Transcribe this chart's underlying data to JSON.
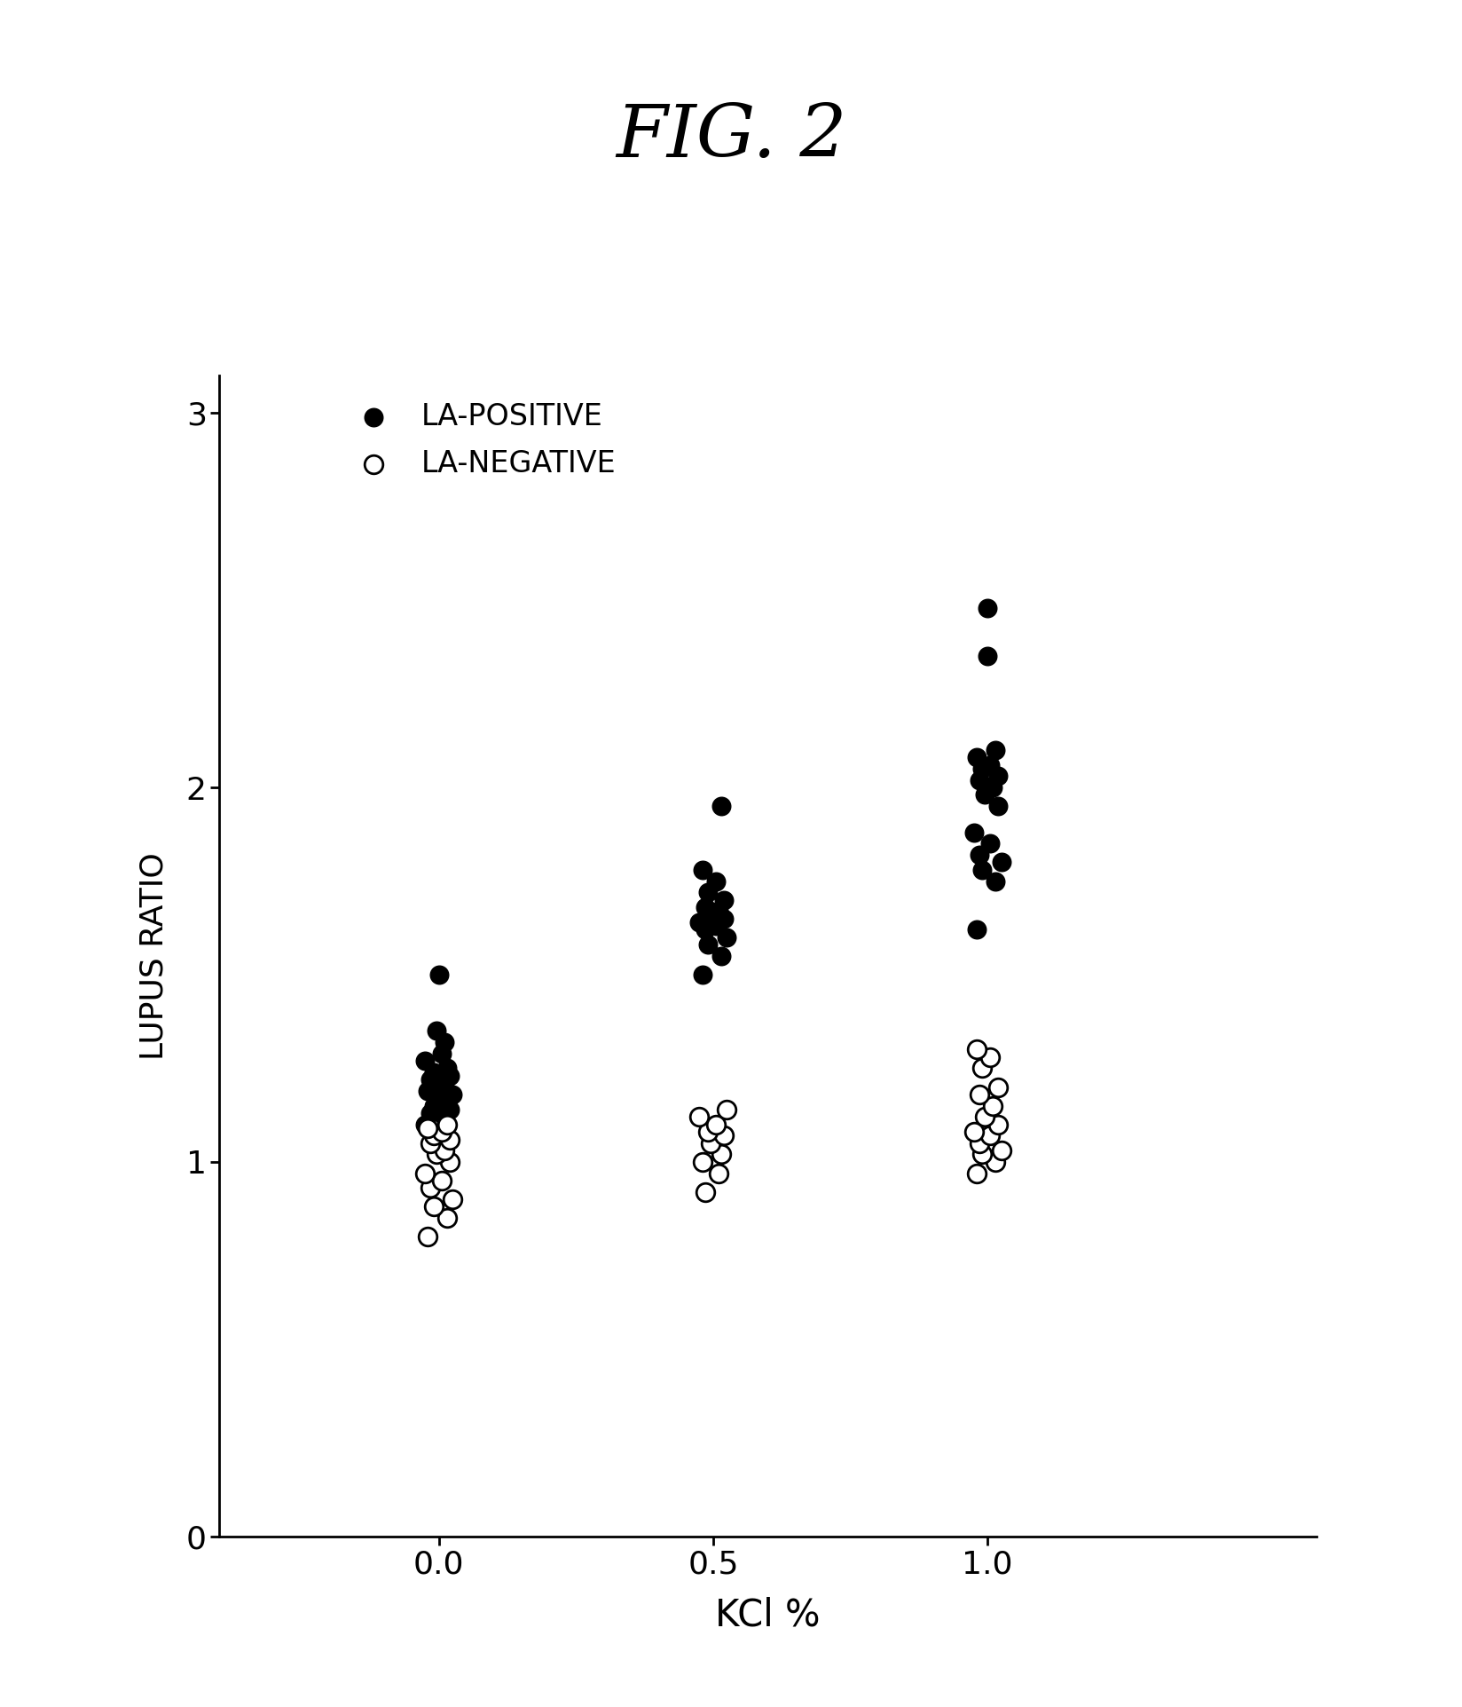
{
  "title": "FIG. 2",
  "xlabel": "KCl %",
  "ylabel": "LUPUS RATIO",
  "ylim": [
    0,
    3.1
  ],
  "xlim": [
    -0.4,
    1.6
  ],
  "yticks": [
    0,
    1,
    2,
    3
  ],
  "xtick_positions": [
    0.0,
    0.5,
    1.0
  ],
  "xtick_labels": [
    "0.0",
    "0.5",
    "1.0"
  ],
  "background_color": "#ffffff",
  "la_positive_color": "#000000",
  "la_negative_facecolor": "#ffffff",
  "la_negative_edgecolor": "#000000",
  "marker_size": 220,
  "la_positive": {
    "0.0": [
      1.1,
      1.12,
      1.13,
      1.14,
      1.15,
      1.16,
      1.17,
      1.18,
      1.19,
      1.2,
      1.21,
      1.22,
      1.23,
      1.24,
      1.25,
      1.27,
      1.29,
      1.32,
      1.35,
      1.5
    ],
    "0.5": [
      1.5,
      1.55,
      1.58,
      1.6,
      1.62,
      1.63,
      1.64,
      1.65,
      1.66,
      1.67,
      1.68,
      1.7,
      1.72,
      1.75,
      1.78,
      1.95
    ],
    "1.0": [
      1.62,
      1.75,
      1.78,
      1.8,
      1.82,
      1.85,
      1.88,
      1.95,
      1.98,
      2.0,
      2.02,
      2.03,
      2.05,
      2.06,
      2.08,
      2.1,
      2.35,
      2.48
    ]
  },
  "la_negative": {
    "0.0": [
      0.8,
      0.85,
      0.88,
      0.9,
      0.93,
      0.95,
      0.97,
      1.0,
      1.02,
      1.03,
      1.05,
      1.06,
      1.07,
      1.08,
      1.09,
      1.1
    ],
    "0.5": [
      0.92,
      0.97,
      1.0,
      1.02,
      1.05,
      1.07,
      1.08,
      1.1,
      1.12,
      1.14
    ],
    "1.0": [
      0.97,
      1.0,
      1.02,
      1.03,
      1.05,
      1.07,
      1.08,
      1.1,
      1.12,
      1.15,
      1.18,
      1.2,
      1.25,
      1.28,
      1.3
    ]
  },
  "jitter_positive": {
    "0.0": [
      -0.025,
      0.01,
      -0.015,
      0.02,
      -0.01,
      0.015,
      -0.005,
      0.025,
      -0.02,
      0.005,
      0.01,
      -0.015,
      0.02,
      -0.01,
      0.015,
      -0.025,
      0.005,
      0.01,
      -0.005,
      0.0
    ],
    "0.5": [
      -0.02,
      0.015,
      -0.01,
      0.025,
      -0.015,
      0.005,
      -0.025,
      0.02,
      -0.005,
      0.01,
      -0.015,
      0.02,
      -0.01,
      0.005,
      -0.02,
      0.015
    ],
    "1.0": [
      -0.02,
      0.015,
      -0.01,
      0.025,
      -0.015,
      0.005,
      -0.025,
      0.02,
      -0.005,
      0.01,
      -0.015,
      0.02,
      -0.01,
      0.005,
      -0.02,
      0.015,
      0.0,
      0.0
    ]
  },
  "jitter_negative": {
    "0.0": [
      -0.02,
      0.015,
      -0.01,
      0.025,
      -0.015,
      0.005,
      -0.025,
      0.02,
      -0.005,
      0.01,
      -0.015,
      0.02,
      -0.01,
      0.005,
      -0.02,
      0.015
    ],
    "0.5": [
      -0.015,
      0.01,
      -0.02,
      0.015,
      -0.005,
      0.02,
      -0.01,
      0.005,
      -0.025,
      0.025
    ],
    "1.0": [
      -0.02,
      0.015,
      -0.01,
      0.025,
      -0.015,
      0.005,
      -0.025,
      0.02,
      -0.005,
      0.01,
      -0.015,
      0.02,
      -0.01,
      0.005,
      -0.02
    ]
  }
}
